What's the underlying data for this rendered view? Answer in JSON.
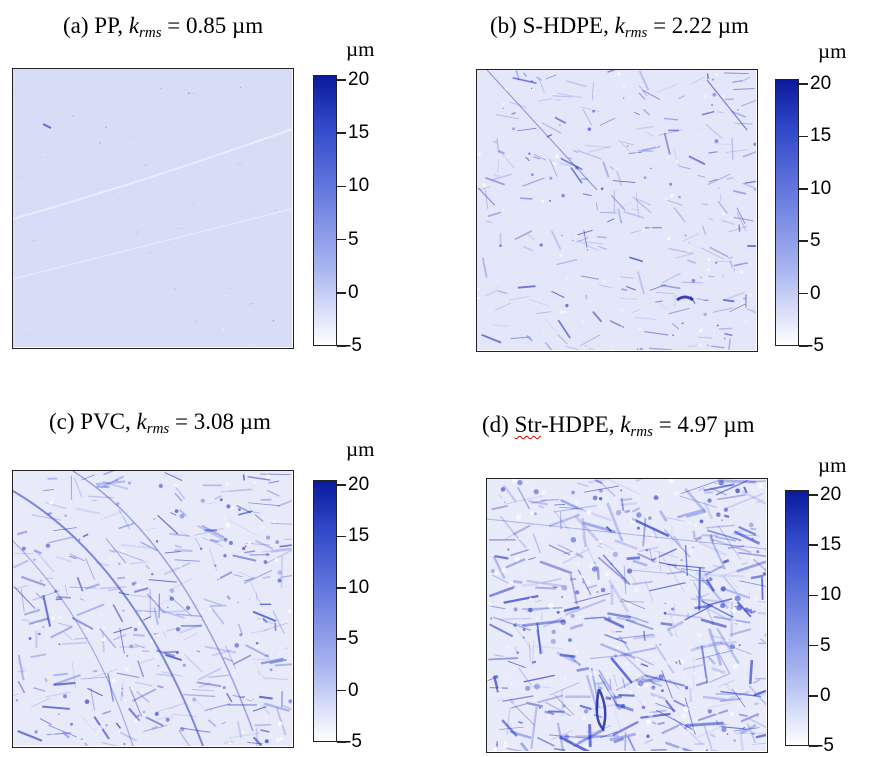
{
  "figure": {
    "panels": [
      {
        "id": "a",
        "label_prefix": "(a) PP, ",
        "k_symbol": "k",
        "k_subscript": "rms",
        "value_text": " = 0.85 µm",
        "unit": "µm",
        "colorbar": {
          "ticks": [
            "20",
            "15",
            "10",
            "5",
            "0",
            "-5"
          ],
          "max": 20,
          "min": -5
        },
        "surface_color": "#d6dbf7"
      },
      {
        "id": "b",
        "label_prefix": "(b) S-HDPE, ",
        "k_symbol": "k",
        "k_subscript": "rms",
        "value_text": " = 2.22 µm",
        "unit": "µm",
        "colorbar": {
          "ticks": [
            "20",
            "15",
            "10",
            "5",
            "0",
            "-5"
          ],
          "max": 20,
          "min": -5
        },
        "surface_color": "#e3e6f9"
      },
      {
        "id": "c",
        "label_prefix": "(c) PVC, ",
        "k_symbol": "k",
        "k_subscript": "rms",
        "value_text": " = 3.08 µm",
        "unit": "µm",
        "colorbar": {
          "ticks": [
            "20",
            "15",
            "10",
            "5",
            "0",
            "-5"
          ],
          "max": 20,
          "min": -5
        },
        "surface_color": "#e7e9fa"
      },
      {
        "id": "d",
        "label_prefix": "(d)  ",
        "label_word": "Str",
        "label_rest": "-HDPE, ",
        "k_symbol": "k",
        "k_subscript": "rms",
        "value_text": " = 4.97 µm",
        "unit": "µm",
        "colorbar": {
          "ticks": [
            "20",
            "15",
            "10",
            "5",
            "0",
            "-5"
          ],
          "max": 20,
          "min": -5
        },
        "surface_color": "#e8eafb"
      }
    ]
  }
}
